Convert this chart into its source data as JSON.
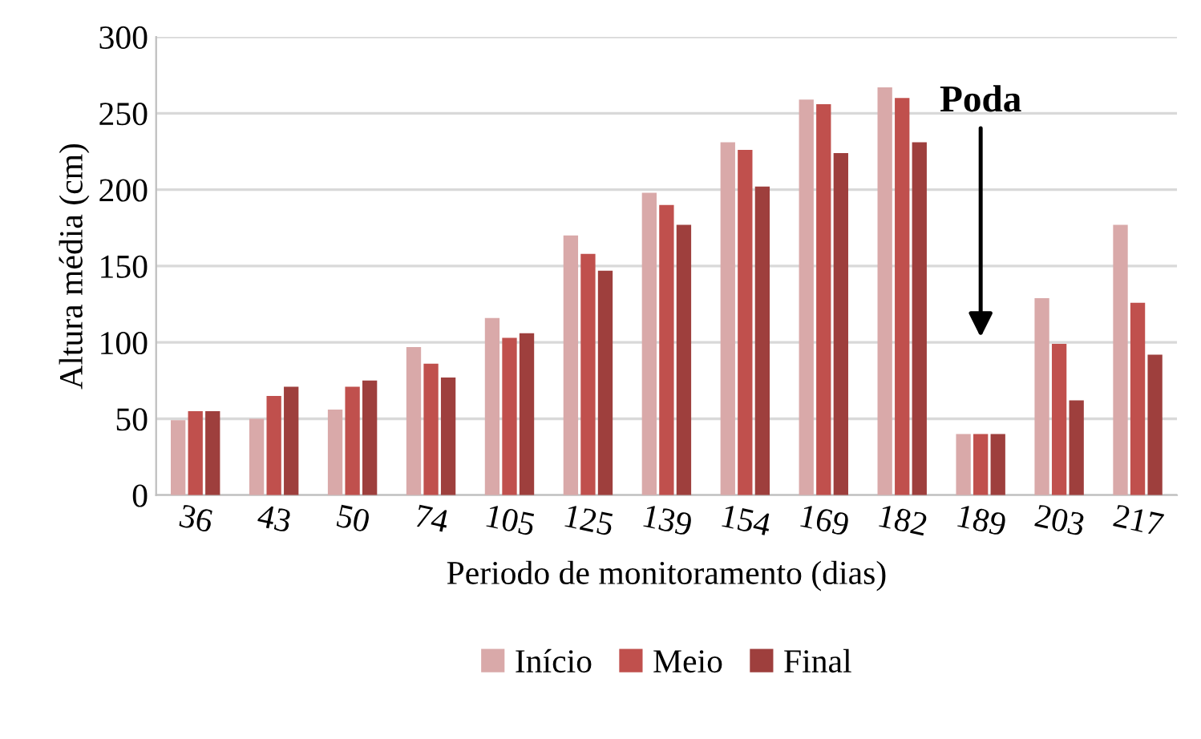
{
  "chart_data": {
    "type": "bar",
    "xlabel": "Periodo de monitoramento (dias)",
    "ylabel": "Altura média (cm)",
    "categories": [
      "36",
      "43",
      "50",
      "74",
      "105",
      "125",
      "139",
      "154",
      "169",
      "182",
      "189",
      "203",
      "217"
    ],
    "series": [
      {
        "name": "Início",
        "color": "#d9a9a9",
        "values": [
          49,
          50,
          56,
          97,
          116,
          170,
          198,
          231,
          259,
          267,
          40,
          129,
          177
        ]
      },
      {
        "name": "Meio",
        "color": "#c0504d",
        "values": [
          55,
          65,
          71,
          86,
          103,
          158,
          190,
          226,
          256,
          260,
          40,
          99,
          126
        ]
      },
      {
        "name": "Final",
        "color": "#9e3f3d",
        "values": [
          55,
          71,
          75,
          77,
          106,
          147,
          177,
          202,
          224,
          231,
          40,
          62,
          92
        ]
      }
    ],
    "ylim": [
      0,
      300
    ],
    "yticks": [
      0,
      50,
      100,
      150,
      200,
      250,
      300
    ],
    "grid": "y",
    "legend": "bottom",
    "annotations": [
      "Poda"
    ]
  }
}
